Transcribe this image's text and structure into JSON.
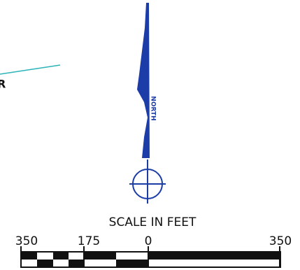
{
  "side_label": "R",
  "north_arrow": {
    "label": "NORTH"
  },
  "scale_bar": {
    "title": "SCALE IN FEET",
    "labels": [
      "350",
      "175",
      "0",
      "350"
    ]
  }
}
